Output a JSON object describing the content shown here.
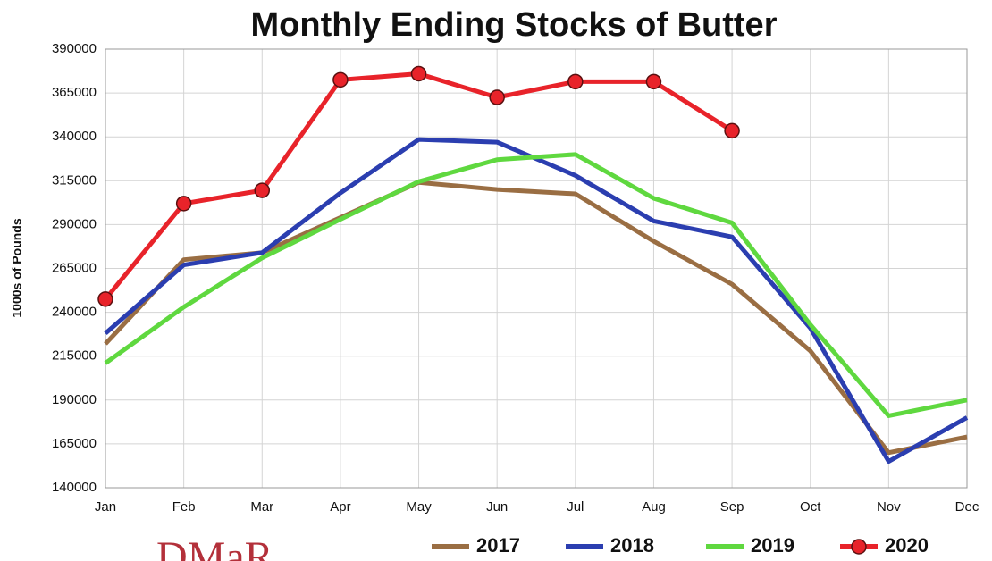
{
  "chart_data": {
    "type": "line",
    "title": "Monthly Ending Stocks of Butter",
    "y_label": "1000s of Pounds",
    "logo": "DMaR",
    "categories": [
      "Jan",
      "Feb",
      "Mar",
      "Apr",
      "May",
      "Jun",
      "Jul",
      "Aug",
      "Sep",
      "Oct",
      "Nov",
      "Dec"
    ],
    "ylim": [
      140000,
      390000
    ],
    "yticks": [
      140000,
      165000,
      190000,
      215000,
      240000,
      265000,
      290000,
      315000,
      340000,
      365000,
      390000
    ],
    "grid": true,
    "legend": "bottom",
    "series": [
      {
        "name": "2017",
        "color": "#9a6e43",
        "values": [
          222000,
          270000,
          274000,
          294000,
          314000,
          310000,
          307500,
          280500,
          256000,
          218000,
          160000,
          169000
        ]
      },
      {
        "name": "2018",
        "color": "#2b3eb0",
        "values": [
          228000,
          267000,
          274000,
          308000,
          338500,
          337000,
          318000,
          292000,
          283000,
          231000,
          155000,
          180000
        ]
      },
      {
        "name": "2019",
        "color": "#5fd83f",
        "values": [
          211000,
          243000,
          271000,
          293000,
          314500,
          327000,
          330000,
          305000,
          291000,
          233000,
          181000,
          190000
        ]
      },
      {
        "name": "2020",
        "color": "#e8232a",
        "marker": true,
        "values": [
          247500,
          302000,
          309500,
          372500,
          376000,
          362500,
          371500,
          371500,
          343500,
          null,
          null,
          null
        ]
      }
    ]
  }
}
